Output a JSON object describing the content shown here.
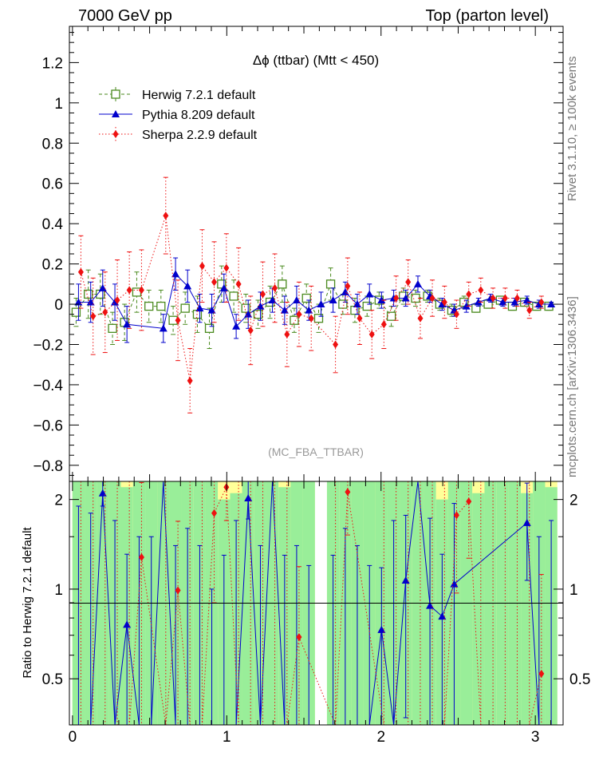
{
  "chart_data": {
    "type": "scatter",
    "title": "Δϕ (ttbar) (Mtt < 450)",
    "header_left": "7000 GeV pp",
    "header_right": "Top (parton level)",
    "analysis_label": "(MC_FBA_TTBAR)",
    "side_label_top": "Rivet 3.1.10, ≥ 100k events",
    "side_label_bottom": "mcplots.cern.ch [arXiv:1306.3436]",
    "ratio_ylabel": "Ratio to Herwig 7.2.1 default",
    "xlim": [
      -0.02,
      3.18
    ],
    "ylim": [
      -0.88,
      1.38
    ],
    "ratio_ylim": [
      0.35,
      2.3
    ],
    "x_ticks": [
      0,
      1,
      2,
      3
    ],
    "y_ticks": [
      -0.8,
      -0.6,
      -0.4,
      -0.2,
      0,
      0.2,
      0.4,
      0.6,
      0.8,
      1,
      1.2
    ],
    "y_tick_labels": [
      "−0.8",
      "−0.6",
      "−0.4",
      "−0.2",
      "0",
      "0.2",
      "0.4",
      "0.6",
      "0.8",
      "1",
      "1.2"
    ],
    "ratio_ticks": [
      0.5,
      1,
      2
    ],
    "ratio_tick_labels": [
      "0.5",
      "1",
      "2"
    ],
    "x": [
      0.039,
      0.118,
      0.196,
      0.275,
      0.353,
      0.432,
      0.511,
      0.589,
      0.668,
      0.746,
      0.825,
      0.903,
      0.982,
      1.061,
      1.139,
      1.218,
      1.296,
      1.375,
      1.453,
      1.532,
      1.611,
      1.689,
      1.768,
      1.846,
      1.925,
      2.003,
      2.082,
      2.16,
      2.239,
      2.317,
      2.396,
      2.474,
      2.553,
      2.631,
      2.71,
      2.789,
      2.867,
      2.946,
      3.024,
      3.103
    ],
    "series": [
      {
        "name": "Herwig 7.2.1 default",
        "color": "#4a8a1e",
        "marker": "open-square",
        "values": [
          -0.04,
          0.05,
          0.05,
          -0.12,
          -0.09,
          0.06,
          -0.01,
          -0.01,
          -0.08,
          -0.02,
          -0.05,
          -0.12,
          0.1,
          0.04,
          -0.02,
          -0.05,
          0.01,
          0.1,
          -0.08,
          0.03,
          -0.07,
          0.1,
          0.0,
          -0.03,
          -0.01,
          0.02,
          -0.06,
          0.04,
          0.03,
          0.04,
          0.0,
          -0.03,
          0.01,
          -0.02,
          0.0,
          0.02,
          -0.01,
          0.01,
          -0.01,
          -0.01
        ],
        "errors": [
          0.07,
          0.12,
          0.1,
          0.08,
          0.09,
          0.1,
          0.08,
          0.08,
          0.07,
          0.08,
          0.09,
          0.1,
          0.09,
          0.08,
          0.07,
          0.07,
          0.08,
          0.09,
          0.06,
          0.07,
          0.07,
          0.08,
          0.05,
          0.06,
          0.05,
          0.04,
          0.05,
          0.04,
          0.04,
          0.03,
          0.03,
          0.03,
          0.03,
          0.02,
          0.02,
          0.02,
          0.02,
          0.02,
          0.02,
          0.02
        ]
      },
      {
        "name": "Pythia 8.209 default",
        "color": "#0000cc",
        "marker": "triangle",
        "values": [
          0.01,
          0.01,
          0.08,
          0.01,
          -0.1,
          null,
          null,
          -0.12,
          0.15,
          0.09,
          -0.02,
          -0.03,
          0.08,
          -0.11,
          -0.05,
          -0.01,
          0.02,
          -0.03,
          0.02,
          -0.03,
          0.0,
          0.02,
          0.06,
          0.0,
          0.05,
          0.02,
          0.03,
          0.03,
          0.1,
          0.04,
          0.0,
          -0.03,
          -0.01,
          0.01,
          0.03,
          0.01,
          0.01,
          0.02,
          0.0,
          0.0
        ],
        "errors": [
          0.09,
          0.1,
          0.09,
          0.09,
          0.09,
          null,
          null,
          0.07,
          0.08,
          0.08,
          0.07,
          0.08,
          0.07,
          0.06,
          0.07,
          0.07,
          0.06,
          0.07,
          0.07,
          0.05,
          0.06,
          0.06,
          0.05,
          0.05,
          0.05,
          0.04,
          0.04,
          0.04,
          0.04,
          0.03,
          0.03,
          0.03,
          0.03,
          0.02,
          0.02,
          0.02,
          0.02,
          0.02,
          0.02,
          0.01
        ]
      },
      {
        "name": "Sherpa 2.2.9 default",
        "color": "#ee1111",
        "marker": "diamond",
        "values": [
          0.16,
          -0.06,
          -0.04,
          0.02,
          0.07,
          0.07,
          null,
          0.44,
          -0.08,
          -0.38,
          0.19,
          0.11,
          0.18,
          0.1,
          -0.13,
          0.05,
          0.08,
          -0.15,
          -0.05,
          -0.07,
          null,
          -0.2,
          0.09,
          -0.07,
          -0.15,
          -0.1,
          0.03,
          0.11,
          -0.07,
          0.03,
          0.01,
          -0.05,
          0.05,
          0.07,
          0.03,
          0.03,
          0.03,
          -0.03,
          0.01,
          null
        ],
        "errors": [
          0.18,
          0.19,
          0.2,
          0.2,
          0.19,
          0.2,
          null,
          0.19,
          0.2,
          0.16,
          0.18,
          0.2,
          0.17,
          0.18,
          0.17,
          0.16,
          0.17,
          0.16,
          0.16,
          0.16,
          null,
          0.14,
          0.14,
          0.13,
          0.12,
          0.12,
          0.11,
          0.11,
          0.1,
          0.09,
          0.08,
          0.07,
          0.06,
          0.06,
          0.05,
          0.05,
          0.04,
          0.04,
          0.03,
          null
        ]
      }
    ],
    "ratio_series": [
      {
        "name": "Pythia 8.209 default",
        "values": [
          0.1,
          0.1,
          2.1,
          0.1,
          0.76,
          0.1,
          0.1,
          4.0,
          0.1,
          0.1,
          0.1,
          0.1,
          0.1,
          0.1,
          2.02,
          0.1,
          4.0,
          0.1,
          0.1,
          0.1,
          null,
          0.1,
          0.1,
          0.1,
          0.1,
          0.73,
          0.1,
          1.07,
          4.0,
          0.88,
          0.81,
          1.04,
          null,
          null,
          null,
          null,
          null,
          1.67,
          0.1,
          0.1
        ],
        "errors": [
          1.8,
          1.7,
          0.2,
          1.6,
          0.55,
          1.4,
          1.4,
          1.5,
          1.3,
          1.5,
          1.3,
          0.9,
          1.2,
          1.6,
          0.3,
          1.3,
          1.4,
          1.2,
          1.3,
          1.1,
          null,
          1.2,
          1.5,
          1.3,
          1.1,
          0.45,
          1.6,
          0.7,
          1.2,
          0.85,
          0.5,
          0.9,
          null,
          null,
          null,
          null,
          null,
          0.6,
          1.4,
          1.6
        ]
      },
      {
        "name": "Sherpa 2.2.9 default",
        "values": [
          0.1,
          0.1,
          0.1,
          0.1,
          0.1,
          1.28,
          null,
          0.1,
          0.99,
          0.1,
          0.1,
          1.8,
          2.2,
          0.1,
          0.1,
          0.1,
          0.1,
          0.1,
          0.69,
          null,
          null,
          0.1,
          2.12,
          null,
          null,
          0.1,
          0.1,
          0.1,
          0.1,
          0.1,
          0.1,
          1.77,
          1.97,
          0.1,
          0.1,
          0.1,
          0.1,
          0.1,
          0.52,
          null
        ],
        "errors": [
          2.4,
          2.4,
          2.4,
          2.4,
          2.4,
          1.0,
          null,
          2.4,
          0.7,
          2.4,
          2.4,
          0.9,
          0.5,
          2.4,
          2.4,
          2.4,
          2.4,
          2.4,
          0.5,
          null,
          null,
          2.4,
          0.6,
          null,
          null,
          2.4,
          2.4,
          2.4,
          2.4,
          2.4,
          2.4,
          0.8,
          0.7,
          2.4,
          2.4,
          2.4,
          2.4,
          2.4,
          0.6,
          null
        ]
      }
    ],
    "ratio_bands": {
      "green_half_width": [
        3,
        3,
        3,
        3,
        1.2,
        3,
        3,
        3,
        3,
        3,
        3,
        3,
        1.0,
        1.1,
        3,
        3,
        3,
        1.2,
        3,
        3,
        0,
        1.3,
        3,
        3,
        3,
        3,
        3,
        3,
        3,
        3,
        1.0,
        3,
        3,
        1.1,
        3,
        3,
        3,
        1.1,
        3,
        1.2
      ],
      "yellow_half_width": [
        3,
        3,
        3,
        3,
        3,
        3,
        3,
        3,
        3,
        3,
        3,
        3,
        3,
        3,
        3,
        3,
        3,
        3,
        3,
        3,
        0,
        3,
        3,
        3,
        3,
        3,
        3,
        3,
        3,
        3,
        3,
        3,
        3,
        3,
        3,
        3,
        3,
        3,
        3,
        3
      ]
    }
  }
}
